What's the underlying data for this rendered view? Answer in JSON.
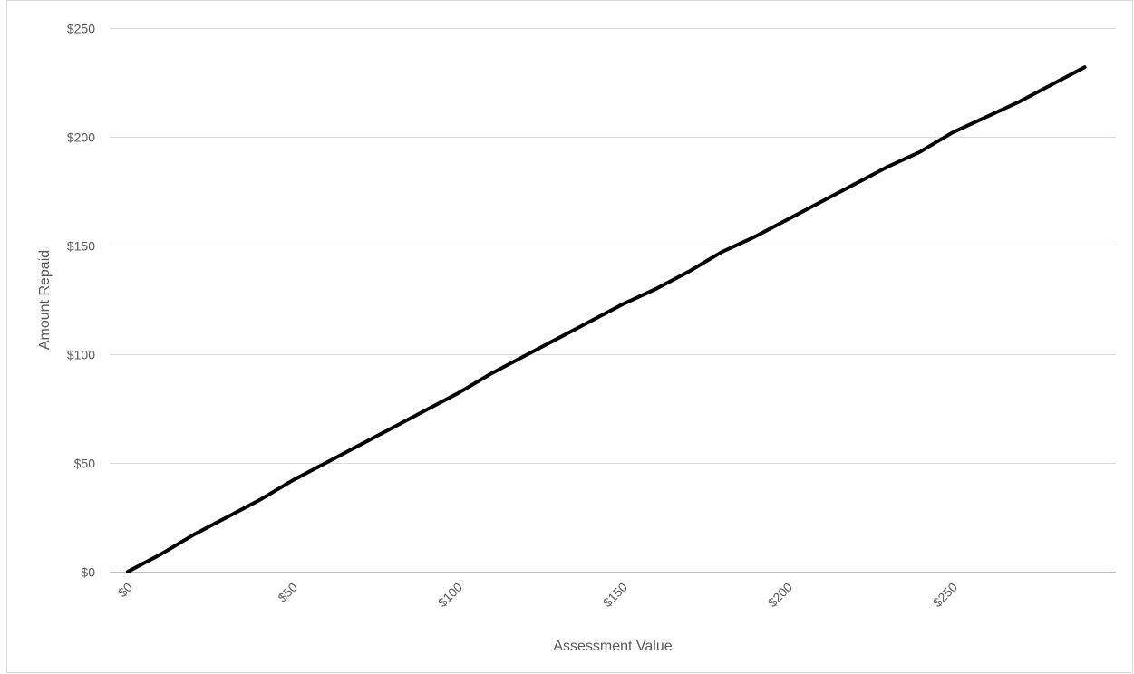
{
  "chart_data": {
    "type": "line",
    "title": "",
    "xlabel": "Assessment Value",
    "ylabel": "Amount Repaid",
    "xlim": [
      0,
      290
    ],
    "ylim": [
      0,
      250
    ],
    "x_ticks": [
      0,
      50,
      100,
      150,
      200,
      250
    ],
    "x_tick_labels": [
      "$0",
      "$50",
      "$100",
      "$150",
      "$200",
      "$250"
    ],
    "y_ticks": [
      0,
      50,
      100,
      150,
      200,
      250
    ],
    "y_tick_labels": [
      "$0",
      "$50",
      "$100",
      "$150",
      "$200",
      "$250"
    ],
    "grid": "horizontal",
    "legend": "none",
    "series": [
      {
        "color": "#000000",
        "x": [
          0,
          10,
          20,
          30,
          40,
          50,
          60,
          70,
          80,
          90,
          100,
          110,
          120,
          130,
          140,
          150,
          160,
          170,
          180,
          190,
          200,
          210,
          220,
          230,
          240,
          250,
          260,
          270,
          280,
          290
        ],
        "values": [
          0,
          8,
          17,
          25,
          33,
          42,
          50,
          58,
          66,
          74,
          82,
          91,
          99,
          107,
          115,
          123,
          130,
          138,
          147,
          154,
          162,
          170,
          178,
          186,
          193,
          202,
          209,
          216,
          224,
          232
        ]
      }
    ]
  }
}
